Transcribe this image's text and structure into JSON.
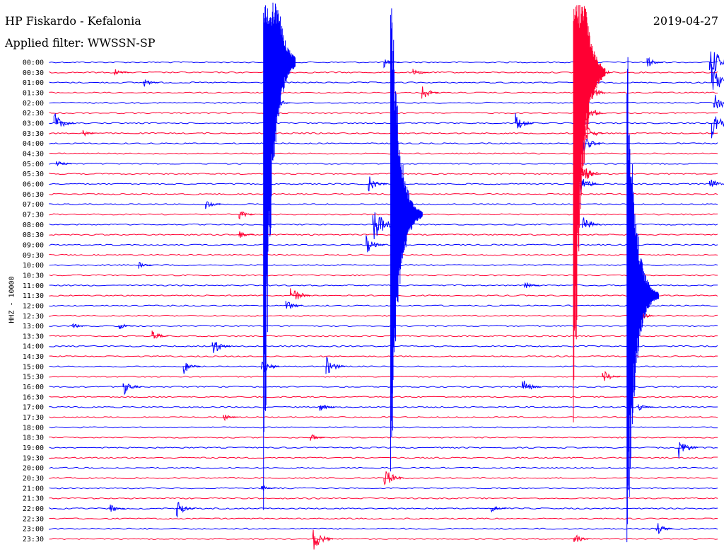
{
  "header": {
    "station": "HP Fiskardo - Kefalonia",
    "date": "2019-04-27",
    "filter": "Applied filter: WWSSN-SP"
  },
  "chart_data": {
    "type": "line",
    "title": "HP Fiskardo - Kefalonia",
    "ylabel": "HHZ - 10000",
    "x_range_minutes": [
      0,
      30
    ],
    "colors": {
      "even": "#0000ff",
      "odd": "#ff0033"
    },
    "trace_labels": [
      "00:00",
      "00:30",
      "01:00",
      "01:30",
      "02:00",
      "02:30",
      "03:00",
      "03:30",
      "04:00",
      "04:30",
      "05:00",
      "05:30",
      "06:00",
      "06:30",
      "07:00",
      "07:30",
      "08:00",
      "08:30",
      "09:00",
      "09:30",
      "10:00",
      "10:30",
      "11:00",
      "11:30",
      "12:00",
      "12:30",
      "13:00",
      "13:30",
      "14:00",
      "14:30",
      "15:00",
      "15:30",
      "16:00",
      "16:30",
      "17:00",
      "17:30",
      "18:00",
      "18:30",
      "19:00",
      "19:30",
      "20:00",
      "20:30",
      "21:00",
      "21:30",
      "22:00",
      "22:30",
      "23:00",
      "23:30"
    ],
    "events": [
      {
        "trace": 0,
        "minute": 15.0,
        "amp": 8
      },
      {
        "trace": 0,
        "minute": 26.8,
        "amp": 10
      },
      {
        "trace": 0,
        "minute": 29.6,
        "amp": 30
      },
      {
        "trace": 1,
        "minute": 2.9,
        "amp": 6
      },
      {
        "trace": 1,
        "minute": 16.3,
        "amp": 8
      },
      {
        "trace": 1,
        "minute": 23.8,
        "amp": 40
      },
      {
        "trace": 2,
        "minute": 4.2,
        "amp": 8
      },
      {
        "trace": 2,
        "minute": 29.7,
        "amp": 30
      },
      {
        "trace": 3,
        "minute": 16.7,
        "amp": 12
      },
      {
        "trace": 3,
        "minute": 23.6,
        "amp": 40
      },
      {
        "trace": 4,
        "minute": 9.9,
        "amp": 18
      },
      {
        "trace": 4,
        "minute": 29.8,
        "amp": 20
      },
      {
        "trace": 5,
        "minute": 23.7,
        "amp": 30
      },
      {
        "trace": 6,
        "minute": 0.2,
        "amp": 18
      },
      {
        "trace": 6,
        "minute": 20.9,
        "amp": 15
      },
      {
        "trace": 6,
        "minute": 29.7,
        "amp": 25
      },
      {
        "trace": 7,
        "minute": 1.5,
        "amp": 5
      },
      {
        "trace": 7,
        "minute": 23.9,
        "amp": 20
      },
      {
        "trace": 8,
        "minute": 23.7,
        "amp": 25
      },
      {
        "trace": 10,
        "minute": 0.3,
        "amp": 8
      },
      {
        "trace": 11,
        "minute": 23.8,
        "amp": 20
      },
      {
        "trace": 12,
        "minute": 14.3,
        "amp": 15
      },
      {
        "trace": 12,
        "minute": 23.7,
        "amp": 20
      },
      {
        "trace": 12,
        "minute": 29.6,
        "amp": 12
      },
      {
        "trace": 14,
        "minute": 7.0,
        "amp": 8
      },
      {
        "trace": 15,
        "minute": 8.5,
        "amp": 8
      },
      {
        "trace": 16,
        "minute": 14.5,
        "amp": 30
      },
      {
        "trace": 16,
        "minute": 23.9,
        "amp": 15
      },
      {
        "trace": 17,
        "minute": 8.5,
        "amp": 6
      },
      {
        "trace": 18,
        "minute": 14.2,
        "amp": 14
      },
      {
        "trace": 20,
        "minute": 4.0,
        "amp": 6
      },
      {
        "trace": 22,
        "minute": 21.3,
        "amp": 6
      },
      {
        "trace": 23,
        "minute": 10.8,
        "amp": 18
      },
      {
        "trace": 24,
        "minute": 10.6,
        "amp": 10
      },
      {
        "trace": 25,
        "minute": 26.4,
        "amp": 10
      },
      {
        "trace": 26,
        "minute": 1.0,
        "amp": 6
      },
      {
        "trace": 26,
        "minute": 3.1,
        "amp": 7
      },
      {
        "trace": 27,
        "minute": 4.6,
        "amp": 10
      },
      {
        "trace": 28,
        "minute": 7.3,
        "amp": 16
      },
      {
        "trace": 30,
        "minute": 6.0,
        "amp": 12
      },
      {
        "trace": 30,
        "minute": 12.4,
        "amp": 16
      },
      {
        "trace": 30,
        "minute": 9.5,
        "amp": 15
      },
      {
        "trace": 31,
        "minute": 24.8,
        "amp": 12
      },
      {
        "trace": 32,
        "minute": 3.3,
        "amp": 14
      },
      {
        "trace": 32,
        "minute": 21.2,
        "amp": 14
      },
      {
        "trace": 34,
        "minute": 12.1,
        "amp": 8
      },
      {
        "trace": 34,
        "minute": 26.4,
        "amp": 6
      },
      {
        "trace": 35,
        "minute": 7.8,
        "amp": 6
      },
      {
        "trace": 37,
        "minute": 11.7,
        "amp": 6
      },
      {
        "trace": 38,
        "minute": 28.2,
        "amp": 18
      },
      {
        "trace": 41,
        "minute": 15.0,
        "amp": 18
      },
      {
        "trace": 42,
        "minute": 9.5,
        "amp": 6
      },
      {
        "trace": 44,
        "minute": 2.7,
        "amp": 8
      },
      {
        "trace": 44,
        "minute": 5.7,
        "amp": 14
      },
      {
        "trace": 44,
        "minute": 19.8,
        "amp": 6
      },
      {
        "trace": 46,
        "minute": 27.2,
        "amp": 12
      },
      {
        "trace": 47,
        "minute": 11.8,
        "amp": 20
      },
      {
        "trace": 47,
        "minute": 23.5,
        "amp": 10
      }
    ],
    "large_events": [
      {
        "start_trace": 0,
        "start_minute": 9.6,
        "peak_amp": 700,
        "color": "#0000ff"
      },
      {
        "start_trace": 1,
        "start_minute": 23.5,
        "peak_amp": 600,
        "color": "#ff0033"
      },
      {
        "start_trace": 15,
        "start_minute": 15.3,
        "peak_amp": 420,
        "color": "#0000ff"
      },
      {
        "start_trace": 23,
        "start_minute": 25.9,
        "peak_amp": 420,
        "color": "#0000ff"
      }
    ]
  }
}
